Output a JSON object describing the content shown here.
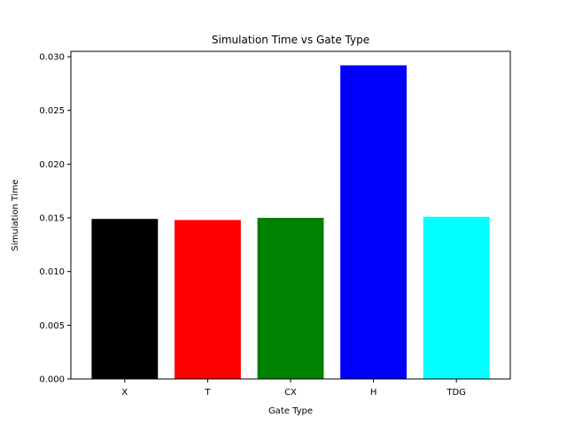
{
  "chart_data": {
    "type": "bar",
    "title": "Simulation Time vs Gate Type",
    "xlabel": "Gate Type",
    "ylabel": "Simulation Time",
    "categories": [
      "X",
      "T",
      "CX",
      "H",
      "TDG"
    ],
    "values": [
      0.0149,
      0.0148,
      0.015,
      0.0292,
      0.0151
    ],
    "colors": [
      "#000000",
      "#ff0000",
      "#008000",
      "#0000ff",
      "#00ffff"
    ],
    "ylim": [
      0,
      0.0305
    ],
    "yticks": [
      0.0,
      0.005,
      0.01,
      0.015,
      0.02,
      0.025,
      0.03
    ],
    "ytick_labels": [
      "0.000",
      "0.005",
      "0.010",
      "0.015",
      "0.020",
      "0.025",
      "0.030"
    ],
    "grid": false,
    "legend": "none"
  }
}
